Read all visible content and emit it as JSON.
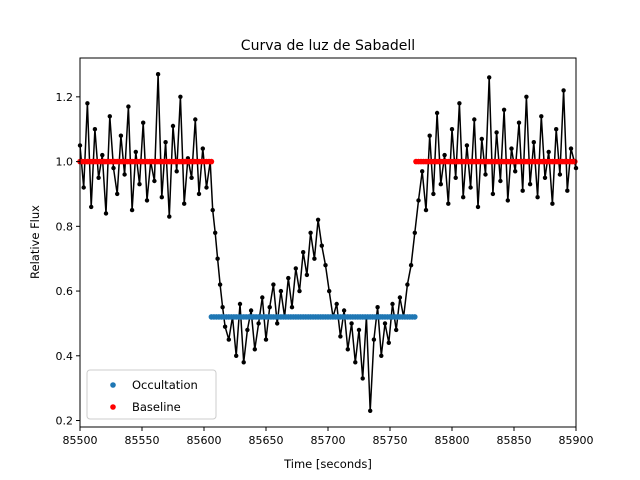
{
  "chart_data": {
    "type": "scatter",
    "title": "Curva de luz de Sabadell",
    "xlabel": "Time [seconds]",
    "ylabel": "Relative Flux",
    "xlim": [
      85500,
      85900
    ],
    "ylim": [
      0.18,
      1.32
    ],
    "xticks": [
      85500,
      85550,
      85600,
      85650,
      85700,
      85750,
      85800,
      85850,
      85900
    ],
    "yticks": [
      0.2,
      0.4,
      0.6,
      0.8,
      1.0,
      1.2
    ],
    "ytick_labels": [
      "0.2",
      "0.4",
      "0.6",
      "0.8",
      "1.0",
      "1.2"
    ],
    "grid": false,
    "legend_position": "lower-left",
    "colors": {
      "data": "#000000",
      "occultation": "#1f77b4",
      "baseline": "#ff0000"
    },
    "lightcurve": {
      "note_hidden": "",
      "points": [
        [
          85500,
          1.05
        ],
        [
          85503,
          0.92
        ],
        [
          85506,
          1.18
        ],
        [
          85509,
          0.86
        ],
        [
          85512,
          1.1
        ],
        [
          85515,
          0.95
        ],
        [
          85518,
          1.02
        ],
        [
          85521,
          0.84
        ],
        [
          85524,
          1.14
        ],
        [
          85527,
          0.98
        ],
        [
          85530,
          0.9
        ],
        [
          85533,
          1.08
        ],
        [
          85536,
          0.96
        ],
        [
          85539,
          1.17
        ],
        [
          85542,
          0.85
        ],
        [
          85545,
          1.03
        ],
        [
          85548,
          0.93
        ],
        [
          85551,
          1.12
        ],
        [
          85554,
          0.88
        ],
        [
          85557,
          1.0
        ],
        [
          85560,
          0.94
        ],
        [
          85563,
          1.27
        ],
        [
          85566,
          0.89
        ],
        [
          85569,
          1.06
        ],
        [
          85572,
          0.83
        ],
        [
          85575,
          1.11
        ],
        [
          85578,
          0.97
        ],
        [
          85581,
          1.2
        ],
        [
          85584,
          0.87
        ],
        [
          85587,
          1.01
        ],
        [
          85590,
          0.95
        ],
        [
          85593,
          1.13
        ],
        [
          85596,
          0.9
        ],
        [
          85599,
          1.04
        ],
        [
          85602,
          0.92
        ],
        [
          85605,
          1.0
        ],
        [
          85607,
          0.85
        ],
        [
          85609,
          0.78
        ],
        [
          85611,
          0.7
        ],
        [
          85613,
          0.62
        ],
        [
          85615,
          0.55
        ],
        [
          85617,
          0.49
        ],
        [
          85620,
          0.45
        ],
        [
          85623,
          0.52
        ],
        [
          85626,
          0.4
        ],
        [
          85629,
          0.56
        ],
        [
          85632,
          0.38
        ],
        [
          85635,
          0.48
        ],
        [
          85638,
          0.54
        ],
        [
          85641,
          0.42
        ],
        [
          85644,
          0.5
        ],
        [
          85647,
          0.58
        ],
        [
          85650,
          0.45
        ],
        [
          85653,
          0.55
        ],
        [
          85656,
          0.62
        ],
        [
          85659,
          0.5
        ],
        [
          85662,
          0.6
        ],
        [
          85665,
          0.52
        ],
        [
          85668,
          0.64
        ],
        [
          85671,
          0.55
        ],
        [
          85674,
          0.67
        ],
        [
          85677,
          0.6
        ],
        [
          85680,
          0.72
        ],
        [
          85683,
          0.65
        ],
        [
          85686,
          0.78
        ],
        [
          85689,
          0.7
        ],
        [
          85692,
          0.82
        ],
        [
          85695,
          0.74
        ],
        [
          85698,
          0.68
        ],
        [
          85701,
          0.6
        ],
        [
          85704,
          0.52
        ],
        [
          85707,
          0.56
        ],
        [
          85710,
          0.46
        ],
        [
          85713,
          0.54
        ],
        [
          85716,
          0.42
        ],
        [
          85719,
          0.5
        ],
        [
          85722,
          0.38
        ],
        [
          85725,
          0.48
        ],
        [
          85728,
          0.33
        ],
        [
          85731,
          0.52
        ],
        [
          85734,
          0.23
        ],
        [
          85737,
          0.45
        ],
        [
          85740,
          0.55
        ],
        [
          85743,
          0.4
        ],
        [
          85746,
          0.5
        ],
        [
          85749,
          0.44
        ],
        [
          85752,
          0.56
        ],
        [
          85755,
          0.48
        ],
        [
          85758,
          0.58
        ],
        [
          85761,
          0.52
        ],
        [
          85764,
          0.62
        ],
        [
          85767,
          0.68
        ],
        [
          85770,
          0.78
        ],
        [
          85773,
          0.88
        ],
        [
          85776,
          0.97
        ],
        [
          85779,
          0.85
        ],
        [
          85782,
          1.08
        ],
        [
          85785,
          0.9
        ],
        [
          85788,
          1.15
        ],
        [
          85791,
          0.93
        ],
        [
          85794,
          1.02
        ],
        [
          85797,
          0.87
        ],
        [
          85800,
          1.1
        ],
        [
          85803,
          0.95
        ],
        [
          85806,
          1.18
        ],
        [
          85809,
          0.89
        ],
        [
          85812,
          1.05
        ],
        [
          85815,
          0.92
        ],
        [
          85818,
          1.13
        ],
        [
          85821,
          0.86
        ],
        [
          85824,
          1.07
        ],
        [
          85827,
          0.96
        ],
        [
          85830,
          1.26
        ],
        [
          85833,
          0.9
        ],
        [
          85836,
          1.09
        ],
        [
          85839,
          0.94
        ],
        [
          85842,
          1.16
        ],
        [
          85845,
          0.88
        ],
        [
          85848,
          1.04
        ],
        [
          85851,
          0.97
        ],
        [
          85854,
          1.12
        ],
        [
          85857,
          0.91
        ],
        [
          85860,
          1.2
        ],
        [
          85863,
          0.93
        ],
        [
          85866,
          1.06
        ],
        [
          85869,
          0.89
        ],
        [
          85872,
          1.14
        ],
        [
          85875,
          0.95
        ],
        [
          85878,
          1.03
        ],
        [
          85881,
          0.87
        ],
        [
          85884,
          1.1
        ],
        [
          85887,
          0.96
        ],
        [
          85890,
          1.22
        ],
        [
          85893,
          0.91
        ],
        [
          85896,
          1.04
        ],
        [
          85900,
          0.98
        ]
      ]
    },
    "series": [
      {
        "name": "Occultation",
        "x": [
          85606,
          85771
        ],
        "y": [
          0.52,
          0.52
        ]
      },
      {
        "name": "Baseline",
        "segments": [
          {
            "x": [
              85500,
              85606
            ],
            "y": [
              1.0,
              1.0
            ]
          },
          {
            "x": [
              85771,
              85900
            ],
            "y": [
              1.0,
              1.0
            ]
          }
        ]
      }
    ]
  }
}
